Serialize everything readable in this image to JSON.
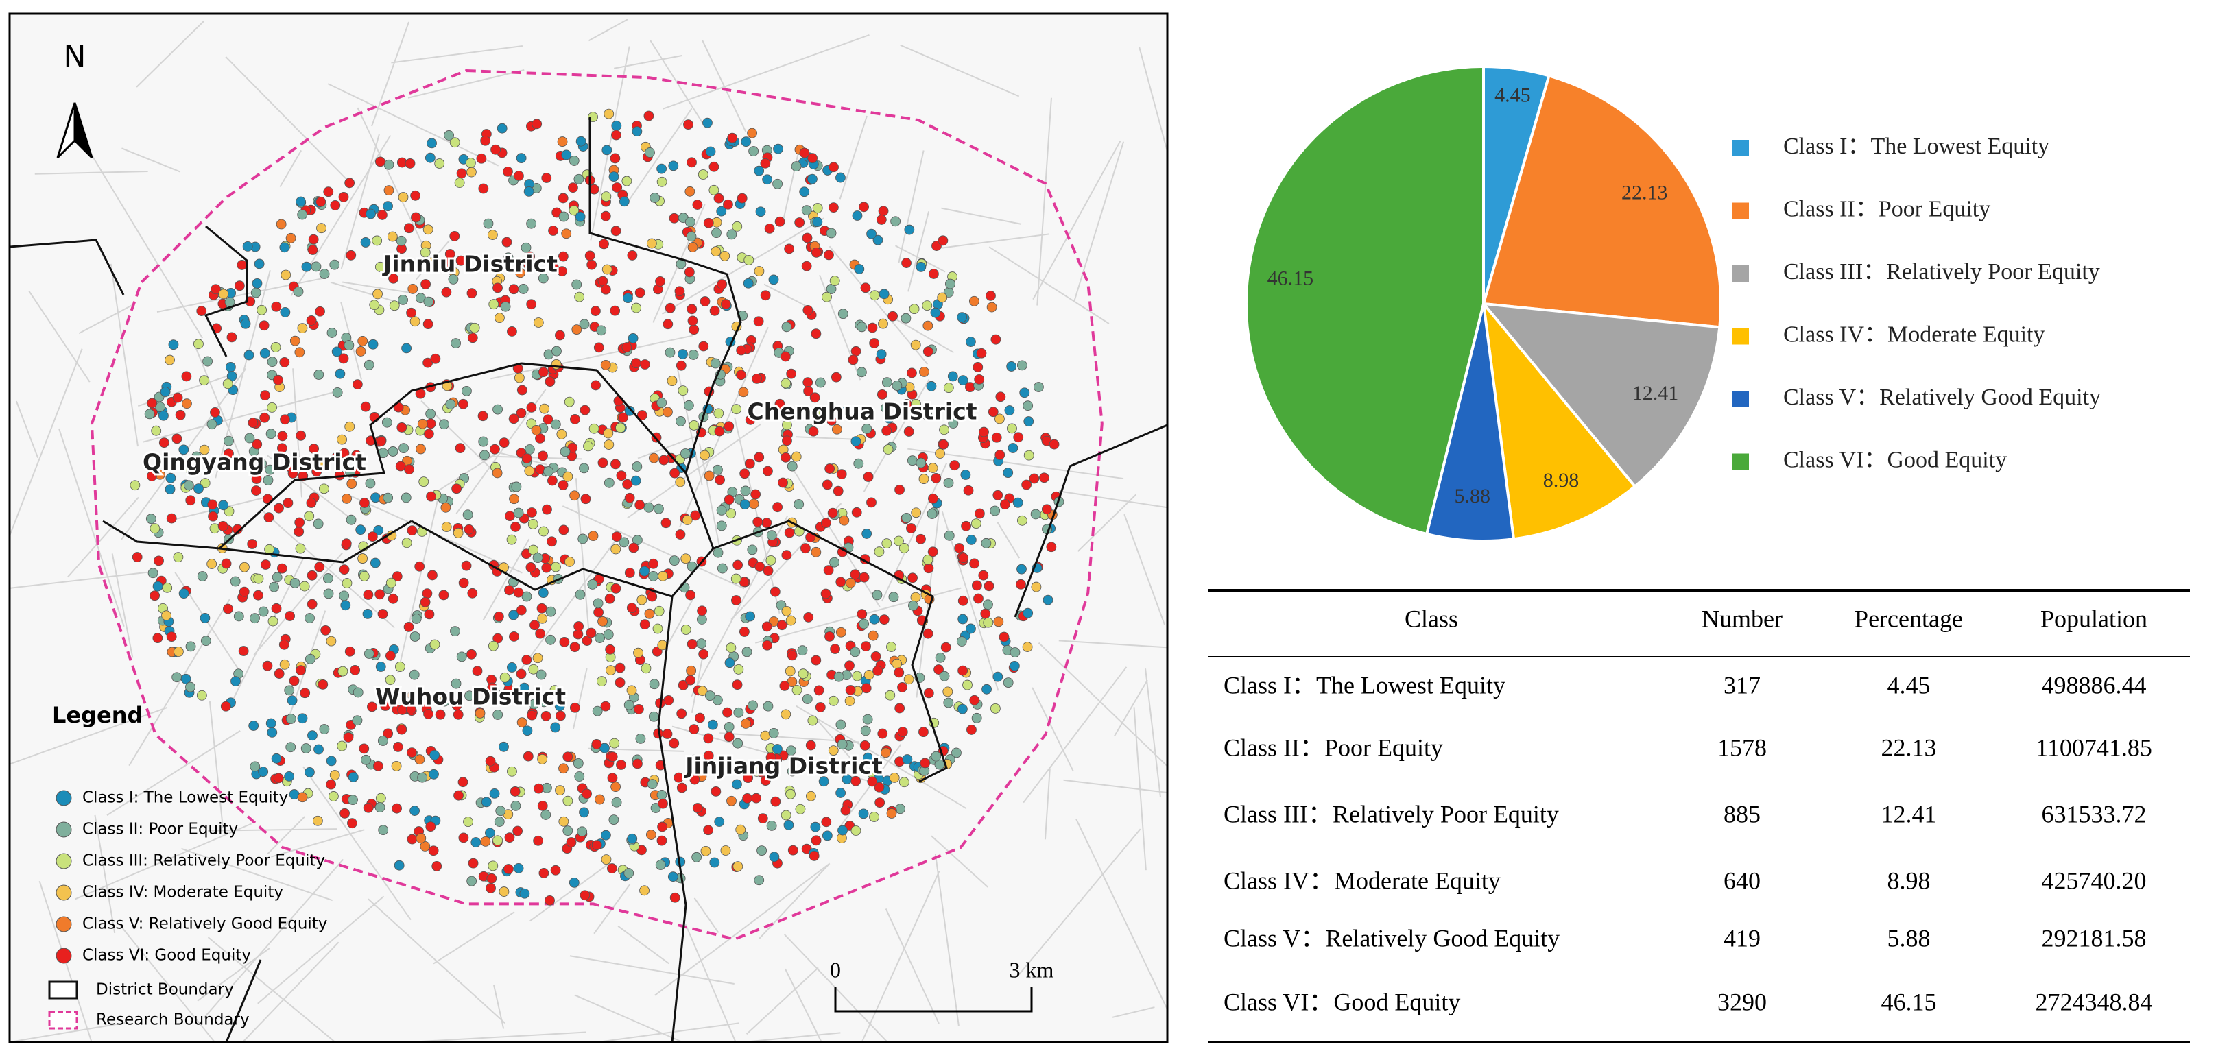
{
  "map": {
    "north": "N",
    "districts": [
      "Jinniu District",
      "Chenghua District",
      "Qingyang District",
      "Wuhou District",
      "Jinjiang District"
    ],
    "legend": {
      "title": "Legend",
      "items": [
        {
          "label": "Class I: The Lowest Equity",
          "color": "#1b8cb8"
        },
        {
          "label": "Class II: Poor Equity",
          "color": "#7faf9c"
        },
        {
          "label": "Class III: Relatively Poor Equity",
          "color": "#c9e27c"
        },
        {
          "label": "Class IV: Moderate Equity",
          "color": "#f3c24f"
        },
        {
          "label": "Class V: Relatively Good Equity",
          "color": "#f07b2b"
        },
        {
          "label": "Class VI: Good Equity",
          "color": "#e8201e"
        }
      ],
      "district_boundary": "District Boundary",
      "research_boundary": "Research Boundary"
    },
    "scale": {
      "start": "0",
      "end": "3 km"
    }
  },
  "chart_data": {
    "type": "pie",
    "categories": [
      "Class I：The Lowest Equity",
      "Class II：Poor Equity",
      "Class III：Relatively Poor Equity",
      "Class IV：Moderate Equity",
      "Class V：Relatively Good Equity",
      "Class VI：Good Equity"
    ],
    "values": [
      4.45,
      22.13,
      12.41,
      8.98,
      5.88,
      46.15
    ],
    "colors": [
      "#2e9bd6",
      "#f7812a",
      "#a5a5a5",
      "#ffc000",
      "#2266c0",
      "#4aa93a"
    ]
  },
  "table": {
    "header": [
      "Class",
      "Number",
      "Percentage",
      "Population"
    ],
    "rows": [
      [
        "Class I：The Lowest Equity",
        "317",
        "4.45",
        "498886.44"
      ],
      [
        "Class II：Poor Equity",
        "1578",
        "22.13",
        "1100741.85"
      ],
      [
        "Class III：Relatively Poor Equity",
        "885",
        "12.41",
        "631533.72"
      ],
      [
        "Class IV：Moderate Equity",
        "640",
        "8.98",
        "425740.20"
      ],
      [
        "Class V：Relatively Good Equity",
        "419",
        "5.88",
        "292181.58"
      ],
      [
        "Class VI：Good Equity",
        "3290",
        "46.15",
        "2724348.84"
      ]
    ]
  }
}
